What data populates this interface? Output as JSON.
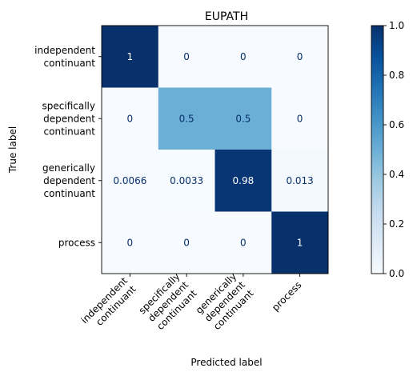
{
  "chart_data": {
    "type": "heatmap",
    "title": "EUPATH",
    "xlabel": "Predicted label",
    "ylabel": "True label",
    "row_labels": [
      [
        "independent",
        "continuant"
      ],
      [
        "specifically",
        "dependent",
        "continuant"
      ],
      [
        "generically",
        "dependent",
        "continuant"
      ],
      [
        "process"
      ]
    ],
    "col_labels": [
      [
        "independent",
        "continuant"
      ],
      [
        "specifically",
        "dependent",
        "continuant"
      ],
      [
        "generically",
        "dependent",
        "continuant"
      ],
      [
        "process"
      ]
    ],
    "cell_labels": [
      [
        "1",
        "0",
        "0",
        "0"
      ],
      [
        "0",
        "0.5",
        "0.5",
        "0"
      ],
      [
        "0.0066",
        "0.0033",
        "0.98",
        "0.013"
      ],
      [
        "0",
        "0",
        "0",
        "1"
      ]
    ],
    "values": [
      [
        1,
        0,
        0,
        0
      ],
      [
        0,
        0.5,
        0.5,
        0
      ],
      [
        0.0066,
        0.0033,
        0.98,
        0.013
      ],
      [
        0,
        0,
        0,
        1
      ]
    ],
    "colormap": "Blues",
    "vmin": 0,
    "vmax": 1,
    "colorbar_ticks": [
      "0.0",
      "0.2",
      "0.4",
      "0.6",
      "0.8",
      "1.0"
    ],
    "colorbar_tick_values": [
      0,
      0.2,
      0.4,
      0.6,
      0.8,
      1.0
    ]
  }
}
